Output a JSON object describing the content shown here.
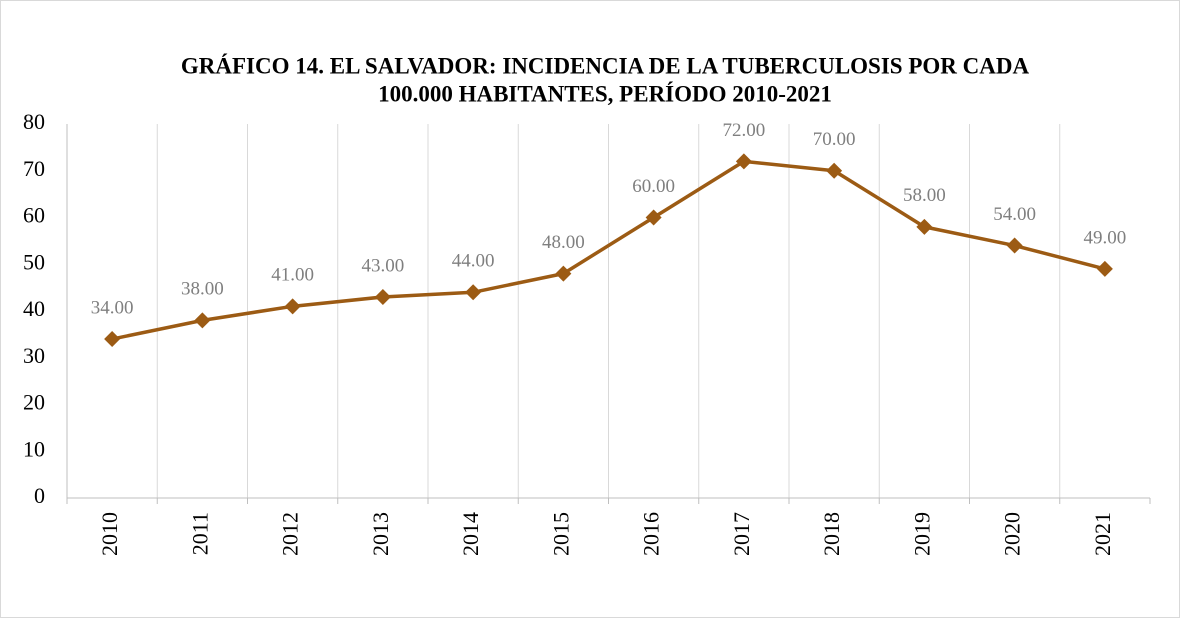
{
  "chart_data": {
    "type": "line",
    "title": [
      "GRÁFICO 14. EL SALVADOR: INCIDENCIA DE LA TUBERCULOSIS POR CADA",
      "100.000 HABITANTES, PERÍODO 2010-2021"
    ],
    "categories": [
      "2010",
      "2011",
      "2012",
      "2013",
      "2014",
      "2015",
      "2016",
      "2017",
      "2018",
      "2019",
      "2020",
      "2021"
    ],
    "values": [
      34,
      38,
      41,
      43,
      44,
      48,
      60,
      72,
      70,
      58,
      54,
      49
    ],
    "value_labels": [
      "34.00",
      "38.00",
      "41.00",
      "43.00",
      "44.00",
      "48.00",
      "60.00",
      "72.00",
      "70.00",
      "58.00",
      "54.00",
      "49.00"
    ],
    "color": "#9c5b14",
    "ylim": [
      0,
      80
    ],
    "yticks": [
      0,
      10,
      20,
      30,
      40,
      50,
      60,
      70,
      80
    ],
    "grid": true
  }
}
